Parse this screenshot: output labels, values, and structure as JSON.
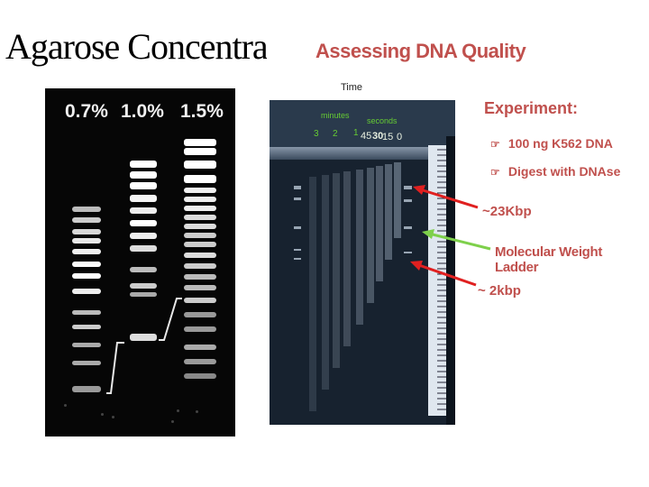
{
  "left_title": "Agarose Concentratior",
  "left_gel": {
    "lanes": [
      "0.7%",
      "1.0%",
      "1.5%"
    ]
  },
  "right_title": "Assessing DNA Quality",
  "right_gel": {
    "time_label": "Time",
    "minutes_label": "minutes",
    "seconds_label": "seconds",
    "minute_ticks": [
      "3",
      "2",
      "1"
    ],
    "second_ticks": [
      "45",
      "30",
      "15",
      "0"
    ]
  },
  "experiment": {
    "title": "Experiment:",
    "bullets": [
      "100 ng K562 DNA",
      "Digest with DNAse"
    ]
  },
  "callouts": {
    "kbp23": "~23Kbp",
    "ladder": "Molecular Weight Ladder",
    "kbp2": "~ 2kbp"
  },
  "colors": {
    "accent": "#c0504d",
    "arrow_red": "#e02020",
    "arrow_green": "#7ed04b",
    "time_green": "#66cc33"
  }
}
